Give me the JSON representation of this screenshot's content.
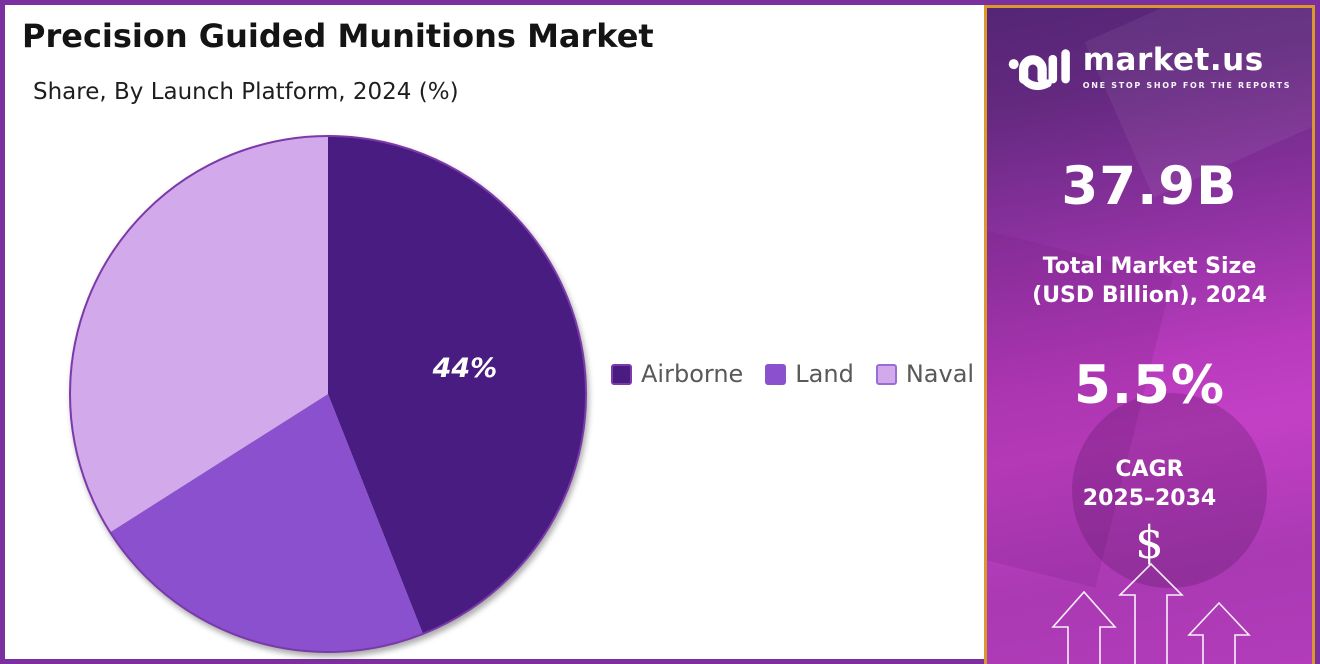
{
  "header": {
    "title": "Precision Guided Munitions Market",
    "subtitle": "Share, By Launch Platform, 2024 (%)"
  },
  "chart_data": {
    "type": "pie",
    "title": "Precision Guided Munitions Market",
    "subtitle": "Share, By Launch Platform, 2024 (%)",
    "categories": [
      "Airborne",
      "Land",
      "Naval"
    ],
    "values": [
      44,
      22,
      34
    ],
    "data_labels": [
      "44%",
      "",
      ""
    ],
    "colors": [
      "#481c80",
      "#8b50ce",
      "#d2a9eb"
    ],
    "swatch_border_colors": [
      "#7c3aac",
      "#8a54c8",
      "#9c6cd6"
    ],
    "outline_color": "#7b39a9",
    "start_angle_deg": 0,
    "direction": "clockwise",
    "legend_position": "right",
    "label_color": "#ffffff"
  },
  "sidebar": {
    "brand": "market.us",
    "tagline": "ONE STOP SHOP FOR THE REPORTS",
    "market_size": {
      "value": "37.9B",
      "label_line1": "Total Market Size",
      "label_line2": "(USD Billion), 2024"
    },
    "cagr": {
      "value": "5.5%",
      "label_line1": "CAGR",
      "label_line2": "2025–2034"
    },
    "dollar_symbol": "$",
    "colors": {
      "border_gold": "#d9992c",
      "gradient_top": "#552576",
      "gradient_mid": "#b93bbd",
      "gradient_bottom": "#b23cba"
    }
  },
  "frame": {
    "border_color": "#7c2f9f"
  }
}
